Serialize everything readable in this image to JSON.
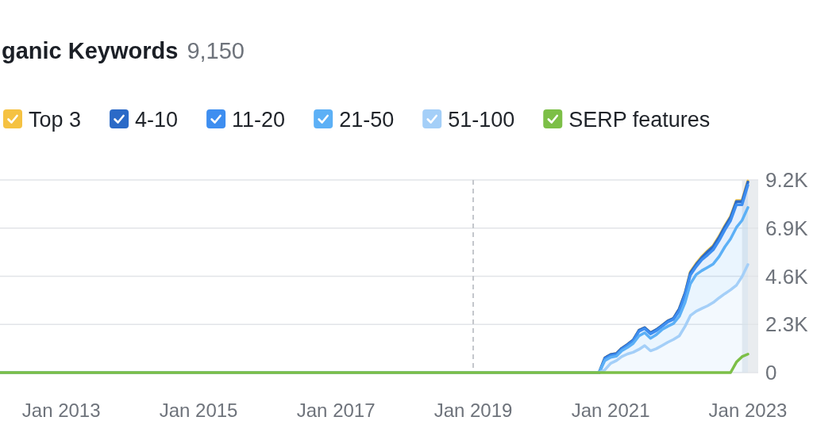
{
  "chart_data": {
    "type": "area",
    "title": "ganic Keywords",
    "subtitle": "9,150",
    "x": [
      "2012-02-10",
      "2020-11",
      "2020-12",
      "2021-01",
      "2021-02",
      "2021-03",
      "2021-04",
      "2021-05",
      "2021-06",
      "2021-07",
      "2021-08",
      "2021-09",
      "2021-10",
      "2021-11",
      "2021-12",
      "2022-01",
      "2022-02",
      "2022-03",
      "2022-04",
      "2022-05",
      "2022-06",
      "2022-07",
      "2022-08",
      "2022-09",
      "2022-10",
      "2022-11",
      "2022-12",
      "2023-01"
    ],
    "series": [
      {
        "name": "51-100",
        "color": "#a4cff8",
        "values": [
          0,
          0,
          130,
          440,
          570,
          760,
          890,
          970,
          1110,
          1290,
          1040,
          1140,
          1290,
          1450,
          1580,
          1750,
          2210,
          2720,
          2930,
          3060,
          3190,
          3350,
          3570,
          3770,
          3950,
          4170,
          4580,
          5160
        ]
      },
      {
        "name": "21-50",
        "color": "#5cb0f6",
        "values": [
          0,
          0,
          440,
          290,
          210,
          280,
          310,
          420,
          640,
          610,
          600,
          670,
          760,
          760,
          760,
          930,
          1140,
          1520,
          1750,
          1810,
          1840,
          1840,
          1970,
          2240,
          2440,
          2760,
          2690,
          2720
        ]
      },
      {
        "name": "11-20",
        "color": "#3e8ef0",
        "values": [
          0,
          0,
          80,
          80,
          80,
          70,
          100,
          120,
          220,
          200,
          210,
          190,
          150,
          210,
          200,
          260,
          350,
          420,
          380,
          520,
          590,
          680,
          770,
          810,
          870,
          1090,
          750,
          1070
        ]
      },
      {
        "name": "4-10",
        "color": "#2b6ac7",
        "values": [
          0,
          0,
          50,
          50,
          50,
          50,
          50,
          50,
          50,
          50,
          50,
          50,
          50,
          50,
          50,
          100,
          100,
          100,
          100,
          100,
          150,
          150,
          150,
          150,
          150,
          150,
          150,
          150
        ]
      },
      {
        "name": "Top 3",
        "color": "#f5c242",
        "values": [
          0,
          0,
          0,
          0,
          0,
          0,
          0,
          0,
          0,
          0,
          0,
          0,
          0,
          0,
          0,
          0,
          0,
          50,
          50,
          50,
          50,
          50,
          50,
          50,
          50,
          50,
          50,
          50
        ]
      },
      {
        "name": "SERP features",
        "type": "line",
        "color": "#7cbf47",
        "values": [
          0,
          0,
          0,
          0,
          0,
          0,
          0,
          0,
          0,
          0,
          0,
          0,
          0,
          0,
          0,
          0,
          0,
          0,
          0,
          0,
          0,
          0,
          0,
          0,
          0,
          500,
          760,
          880
        ]
      }
    ],
    "stacked": true,
    "xlim": [
      "2012-02-10",
      "2023-02-25"
    ],
    "xticks": [
      {
        "value": "2013-01",
        "label": "Jan 2013"
      },
      {
        "value": "2015-01",
        "label": "Jan 2015"
      },
      {
        "value": "2017-01",
        "label": "Jan 2017"
      },
      {
        "value": "2019-01",
        "label": "Jan 2019"
      },
      {
        "value": "2021-01",
        "label": "Jan 2021"
      },
      {
        "value": "2023-01",
        "label": "Jan 2023"
      }
    ],
    "ylim": [
      0,
      9200
    ],
    "yticks": [
      0,
      {
        "value": 2300,
        "label": "2.3K"
      },
      {
        "value": 4600,
        "label": "4.6K"
      },
      {
        "value": 6900,
        "label": "6.9K"
      },
      {
        "value": 9200,
        "label": "9.2K"
      }
    ],
    "grid": "y",
    "legend": "top",
    "ref_lines": [
      {
        "axis": "x",
        "value": "2019-01",
        "line_style": "dashed",
        "color": "#c4c7cc"
      }
    ],
    "bands": [
      {
        "axis": "x",
        "from": "2022-12-01",
        "to": "2023-02-25",
        "color": "#e9ecef"
      }
    ]
  }
}
